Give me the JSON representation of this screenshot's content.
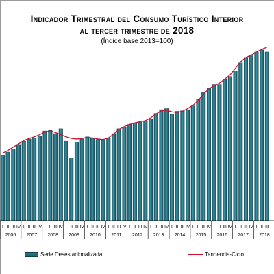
{
  "chart_data": {
    "type": "bar",
    "title_line1": "Indicador Trimestral del Consumo Turístico Interior",
    "title_line2": "al tercer trimestre de 2018",
    "subtitle": "(Índice base 2013=100)",
    "quarter_labels": [
      "I",
      "II",
      "III",
      "IV"
    ],
    "years": [
      "2006",
      "2007",
      "2008",
      "2009",
      "2010",
      "2011",
      "2012",
      "2013",
      "2014",
      "2015",
      "2016",
      "2017",
      "2018"
    ],
    "ylim": [
      80,
      112
    ],
    "grid": false,
    "legend_position": "bottom",
    "series": [
      {
        "name": "Serie Desestacionalizada",
        "type": "bar",
        "color": "#1f6878",
        "values": [
          92.0,
          92.6,
          93.2,
          94.0,
          94.6,
          95.0,
          95.2,
          95.5,
          96.5,
          96.6,
          96.0,
          96.9,
          94.6,
          91.5,
          94.4,
          95.0,
          95.4,
          95.2,
          94.9,
          94.7,
          95.2,
          96.0,
          96.9,
          97.2,
          97.7,
          98.0,
          98.1,
          98.3,
          98.7,
          99.7,
          100.4,
          100.6,
          99.5,
          100.1,
          100.2,
          100.4,
          101.1,
          102.3,
          103.6,
          104.4,
          105.0,
          105.0,
          106.0,
          106.5,
          107.5,
          109.0,
          110.0,
          110.3,
          111.0,
          111.4,
          111.0
        ]
      },
      {
        "name": "Tendencia-Ciclo",
        "type": "line",
        "color": "#c8102e",
        "values": [
          92.4,
          92.9,
          93.5,
          94.1,
          94.7,
          95.1,
          95.4,
          95.8,
          96.3,
          96.5,
          96.2,
          95.8,
          95.4,
          95.1,
          95.0,
          95.1,
          95.3,
          95.2,
          95.0,
          94.9,
          95.2,
          95.9,
          96.8,
          97.3,
          97.7,
          98.0,
          98.2,
          98.4,
          98.9,
          99.6,
          100.2,
          100.3,
          100.0,
          99.9,
          100.1,
          100.6,
          101.2,
          102.1,
          103.3,
          104.2,
          104.8,
          105.3,
          106.0,
          106.8,
          108.0,
          109.2,
          110.0,
          110.4,
          111.0,
          111.5,
          111.9
        ]
      }
    ]
  }
}
